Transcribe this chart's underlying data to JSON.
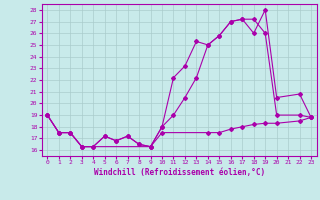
{
  "xlabel": "Windchill (Refroidissement éolien,°C)",
  "bg_color": "#c8eaea",
  "line_color": "#aa00aa",
  "grid_color": "#aacccc",
  "xlim": [
    -0.5,
    23.5
  ],
  "ylim": [
    15.5,
    28.5
  ],
  "yticks": [
    16,
    17,
    18,
    19,
    20,
    21,
    22,
    23,
    24,
    25,
    26,
    27,
    28
  ],
  "xticks": [
    0,
    1,
    2,
    3,
    4,
    5,
    6,
    7,
    8,
    9,
    10,
    11,
    12,
    13,
    14,
    15,
    16,
    17,
    18,
    19,
    20,
    21,
    22,
    23
  ],
  "line1_x": [
    0,
    1,
    2,
    3,
    4,
    5,
    6,
    7,
    8,
    9,
    10,
    11,
    12,
    13,
    14,
    15,
    16,
    17,
    18,
    19,
    20,
    22,
    23
  ],
  "line1_y": [
    19,
    17.5,
    17.5,
    16.3,
    16.3,
    17.2,
    16.8,
    17.2,
    16.5,
    16.3,
    18.0,
    19.0,
    20.5,
    22.2,
    25.0,
    25.8,
    27.0,
    27.2,
    26.0,
    28.0,
    20.5,
    20.8,
    18.8
  ],
  "line2_x": [
    0,
    1,
    2,
    3,
    4,
    5,
    6,
    7,
    8,
    9,
    10,
    11,
    12,
    13,
    14,
    15,
    16,
    17,
    18,
    19,
    20,
    22,
    23
  ],
  "line2_y": [
    19,
    17.5,
    17.5,
    16.3,
    16.3,
    17.2,
    16.8,
    17.2,
    16.5,
    16.3,
    18.0,
    22.2,
    23.2,
    25.3,
    25.0,
    25.8,
    27.0,
    27.2,
    27.2,
    26.0,
    19.0,
    19.0,
    18.8
  ],
  "line3_x": [
    0,
    1,
    2,
    3,
    9,
    10,
    14,
    15,
    16,
    17,
    18,
    19,
    20,
    22,
    23
  ],
  "line3_y": [
    19,
    17.5,
    17.5,
    16.3,
    16.3,
    17.5,
    17.5,
    17.5,
    17.8,
    18.0,
    18.2,
    18.3,
    18.3,
    18.5,
    18.8
  ]
}
